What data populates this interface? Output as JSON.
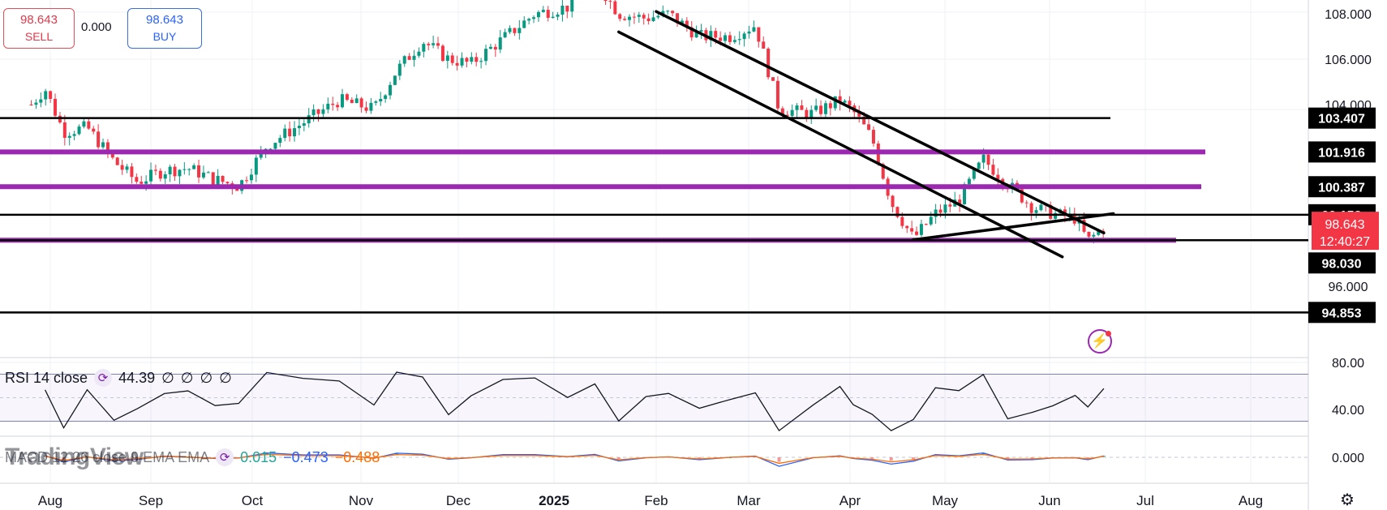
{
  "trade": {
    "sell_price": "98.643",
    "sell_label": "SELL",
    "spread": "0.000",
    "buy_price": "98.643",
    "buy_label": "BUY"
  },
  "price_scale": {
    "ticks": [
      "108.000",
      "106.000",
      "104.000",
      "96.000"
    ],
    "labels": [
      {
        "text": "103.407",
        "value": 103.407
      },
      {
        "text": "101.916",
        "value": 101.916
      },
      {
        "text": "100.387",
        "value": 100.387
      },
      {
        "text": "99.153",
        "value": 99.153
      },
      {
        "text": "98.030",
        "value": 98.03
      },
      {
        "text": "94.853",
        "value": 94.853
      }
    ],
    "current_price": "98.643",
    "countdown": "12:40:27"
  },
  "rsi": {
    "label": "RSI 14 close",
    "value": "44.39",
    "extras": [
      "∅",
      "∅",
      "∅",
      "∅"
    ],
    "ticks": [
      "80.00",
      "40.00"
    ]
  },
  "macd": {
    "label": "MACD 12 26 close 9 EMA EMA",
    "hist": "0.015",
    "macd": "−0.473",
    "signal": "−0.488",
    "ticks": [
      "0.000"
    ]
  },
  "watermark": "TradingView",
  "time_axis": [
    "Aug",
    "Sep",
    "Oct",
    "Nov",
    "Dec",
    "2025",
    "Feb",
    "Mar",
    "Apr",
    "May",
    "Jun",
    "Jul",
    "Aug"
  ],
  "colors": {
    "up": "#089981",
    "down": "#f23645",
    "purple": "#9c27b0",
    "line": "#000000",
    "macd_line": "#2962ff",
    "signal_line": "#ff6d00"
  },
  "chart_data": {
    "type": "candlestick",
    "title": "",
    "y_range": [
      94.0,
      108.0
    ],
    "current_price": 98.643,
    "horizontal_levels": [
      {
        "value": 103.407,
        "color": "black"
      },
      {
        "value": 101.916,
        "color": "purple"
      },
      {
        "value": 100.387,
        "color": "purple"
      },
      {
        "value": 99.153,
        "color": "black"
      },
      {
        "value": 98.03,
        "color": "purple"
      },
      {
        "value": 98.03,
        "color": "black"
      },
      {
        "value": 94.853,
        "color": "black"
      }
    ],
    "price_path": [
      [
        "Jul 20",
        104.0
      ],
      [
        "Jul 28",
        104.7
      ],
      [
        "Aug 5",
        102.8
      ],
      [
        "Aug 12",
        103.0
      ],
      [
        "Aug 20",
        101.5
      ],
      [
        "Aug 27",
        100.6
      ],
      [
        "Sep 5",
        101.1
      ],
      [
        "Sep 12",
        101.2
      ],
      [
        "Sep 20",
        100.7
      ],
      [
        "Sep 27",
        100.4
      ],
      [
        "Oct 5",
        102.2
      ],
      [
        "Oct 15",
        103.2
      ],
      [
        "Oct 25",
        104.2
      ],
      [
        "Nov 5",
        103.8
      ],
      [
        "Nov 12",
        105.5
      ],
      [
        "Nov 20",
        106.8
      ],
      [
        "Nov 28",
        106.0
      ],
      [
        "Dec 5",
        105.8
      ],
      [
        "Dec 15",
        106.9
      ],
      [
        "Dec 25",
        108.0
      ],
      [
        "Jan 5",
        108.3
      ],
      [
        "Jan 13",
        109.5
      ],
      [
        "Jan 20",
        108.0
      ],
      [
        "Jan 28",
        107.8
      ],
      [
        "Feb 5",
        108.0
      ],
      [
        "Feb 15",
        107.0
      ],
      [
        "Feb 25",
        107.0
      ],
      [
        "Mar 3",
        107.5
      ],
      [
        "Mar 10",
        103.8
      ],
      [
        "Mar 20",
        103.6
      ],
      [
        "Mar 28",
        104.2
      ],
      [
        "Apr 2",
        103.7
      ],
      [
        "Apr 8",
        102.5
      ],
      [
        "Apr 14",
        99.7
      ],
      [
        "Apr 21",
        98.1
      ],
      [
        "Apr 28",
        99.2
      ],
      [
        "May 5",
        99.8
      ],
      [
        "May 12",
        101.6
      ],
      [
        "May 19",
        100.5
      ],
      [
        "May 26",
        99.5
      ],
      [
        "Jun 2",
        99.2
      ],
      [
        "Jun 9",
        99.0
      ],
      [
        "Jun 13",
        98.0
      ],
      [
        "Jun 18",
        98.6
      ]
    ],
    "trendlines": [
      {
        "from": [
          "Feb 1",
          108.1
        ],
        "to": [
          "Jun 18",
          98.35
        ]
      },
      {
        "from": [
          "Jan 20",
          107.2
        ],
        "to": [
          "Jun 5",
          97.3
        ]
      },
      {
        "from": [
          "Apr 21",
          98.05
        ],
        "to": [
          "Jun 21",
          99.2
        ]
      }
    ],
    "rsi": {
      "ylim": [
        20,
        80
      ],
      "levels": [
        70,
        50,
        30
      ],
      "last": 44.39
    },
    "macd": {
      "hist": 0.015,
      "macd": -0.473,
      "signal": -0.488
    }
  }
}
